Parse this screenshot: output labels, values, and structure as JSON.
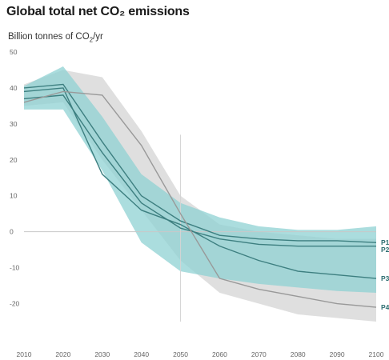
{
  "chart_data": {
    "type": "area",
    "title": "Global total net CO₂ emissions",
    "ylabel_prefix": "Billion tonnes of CO",
    "ylabel_sub": "2",
    "ylabel_suffix": "/yr",
    "xlim": [
      2010,
      2100
    ],
    "ylim": [
      -25,
      50
    ],
    "x_ticks": [
      "2010",
      "2020",
      "2030",
      "2040",
      "2050",
      "2060",
      "2070",
      "2080",
      "2090",
      "2100"
    ],
    "y_ticks": [
      "50",
      "40",
      "30",
      "20",
      "10",
      "0",
      "-10",
      "-20"
    ],
    "grid": false,
    "bands": [
      {
        "color": "#d9d9d9",
        "x": [
          2010,
          2020,
          2030,
          2040,
          2050,
          2060,
          2070,
          2080,
          2090,
          2100
        ],
        "upper": [
          41,
          45,
          43,
          28,
          10,
          2,
          0,
          -1,
          -2,
          -2
        ],
        "lower": [
          35,
          36,
          20,
          6,
          -8,
          -17,
          -20,
          -23,
          -24,
          -25
        ]
      },
      {
        "color": "#8fd1d3",
        "x": [
          2010,
          2020,
          2030,
          2040,
          2050,
          2060,
          2070,
          2080,
          2090,
          2100
        ],
        "upper": [
          40.5,
          46,
          32,
          16,
          8,
          4,
          1.5,
          0.5,
          0.5,
          1.5
        ],
        "lower": [
          34,
          34,
          17,
          -3,
          -11,
          -13,
          -14.5,
          -15.5,
          -16.5,
          -17
        ]
      }
    ],
    "series": [
      {
        "name": "P1",
        "color": "#3d7f80",
        "x": [
          2010,
          2020,
          2030,
          2040,
          2050,
          2060,
          2070,
          2080,
          2090,
          2100
        ],
        "y": [
          40,
          41,
          25,
          10,
          3,
          -1,
          -2,
          -2.5,
          -2.5,
          -3
        ]
      },
      {
        "name": "P2",
        "color": "#3d7f80",
        "x": [
          2010,
          2020,
          2030,
          2040,
          2050,
          2060,
          2070,
          2080,
          2090,
          2100
        ],
        "y": [
          37,
          38,
          22,
          8,
          1,
          -2,
          -3.5,
          -4,
          -4,
          -4
        ]
      },
      {
        "name": "P3",
        "color": "#3d7f80",
        "x": [
          2010,
          2020,
          2030,
          2040,
          2050,
          2060,
          2070,
          2080,
          2090,
          2100
        ],
        "y": [
          39,
          40,
          16,
          6,
          2,
          -4,
          -8,
          -11,
          -12,
          -13
        ]
      },
      {
        "name": "P4",
        "color": "#999999",
        "x": [
          2010,
          2020,
          2030,
          2040,
          2050,
          2060,
          2070,
          2080,
          2090,
          2100
        ],
        "y": [
          36,
          39,
          38,
          24,
          5,
          -13,
          -16,
          -18,
          -20,
          -21
        ]
      }
    ]
  }
}
